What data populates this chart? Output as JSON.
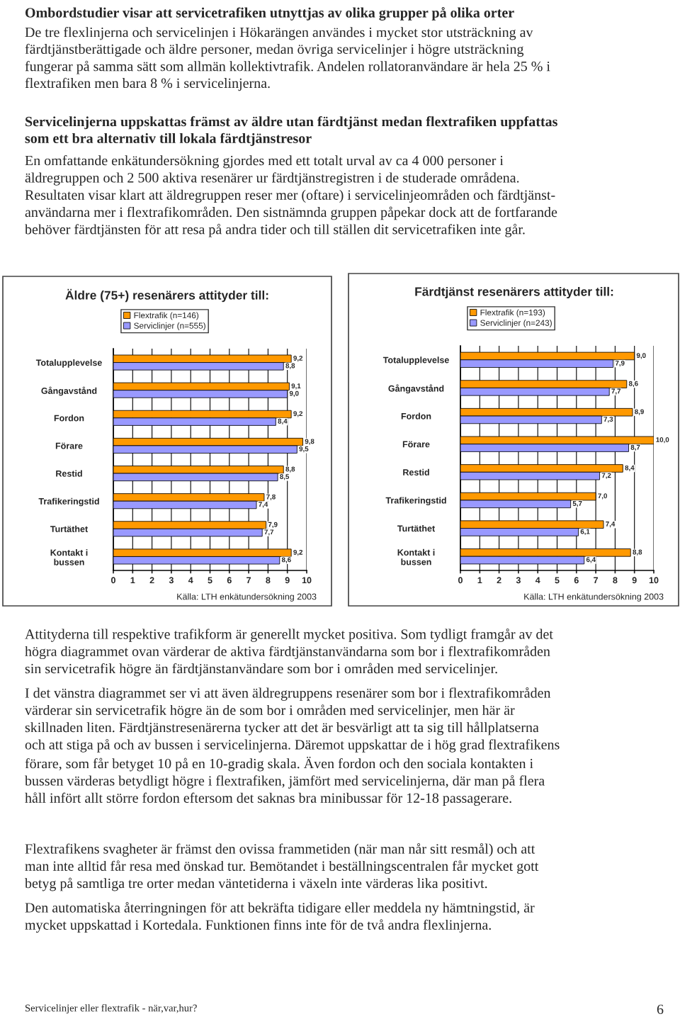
{
  "chart_data": [
    {
      "type": "other",
      "title": "Ombordstudier visar att servicetrafiken utnyttjas av olika grupper på olika orter",
      "annotations": [
        "De tre flexlinjerna och servicelinjen i Hökarängen användes i mycket stor utsträckning av\nfärdtjänstberättigade och äldre personer, medan övriga servicelinjer i högre utsträckning\nfungerar på samma sätt som allmän kollektivtrafik. Andelen rollatoranvändare är hela 25 % i\nflextrafiken men bara 8 % i servicelinjerna."
      ]
    },
    {
      "type": "other",
      "title": "Servicelinjerna uppskattas främst av äldre utan färdtjänst medan flextrafiken uppfattas\nsom ett bra alternativ till lokala färdtjänstresor",
      "annotations": [
        "En omfattande enkätundersökning gjordes med ett totalt urval av ca 4 000 personer i\näldregruppen och 2 500 aktiva resenärer ur färdtjänstregistren i de studerade områdena.\nResultaten visar klart att äldregruppen reser mer (oftare) i servicelinjeområden och färdtjänst-\nanvändarna mer i flextrafikområden. Den sistnämnda gruppen påpekar dock att de fortfarande\nbehöver färdtjänsten för att resa på andra tider och till ställen dit servicetrafiken inte går."
      ]
    },
    {
      "type": "bar",
      "orientation": "horizontal",
      "title": "Äldre (75+) resenärers attityder till:",
      "categories": [
        "Totalupplevelse",
        "Gångavstånd",
        "Fordon",
        "Förare",
        "Restid",
        "Trafikeringstid",
        "Turtäthet",
        "Kontakt i\nbussen"
      ],
      "xlim": [
        0,
        10
      ],
      "xticks": [
        0,
        1,
        2,
        3,
        4,
        5,
        6,
        7,
        8,
        9,
        10
      ],
      "grid": "x",
      "legend": "top",
      "annotations": [
        "Källa: LTH enkätundersökning 2003"
      ],
      "series": [
        {
          "name": "Flextrafik (n=146)",
          "color": "#ff9900",
          "values": [
            9.2,
            9.1,
            9.2,
            9.8,
            8.8,
            7.8,
            7.9,
            9.2
          ],
          "value_labels": [
            "9,2",
            "9,1",
            "9,2",
            "9,8",
            "8,8",
            "7,8",
            "7,9",
            "9,2"
          ]
        },
        {
          "name": "Serviclinjer (n=555)",
          "color": "#9999ff",
          "values": [
            8.8,
            9.0,
            8.4,
            9.5,
            8.5,
            7.4,
            7.7,
            8.6
          ],
          "value_labels": [
            "8,8",
            "9,0",
            "8,4",
            "9,5",
            "8,5",
            "7,4",
            "7,7",
            "8,6"
          ]
        }
      ]
    },
    {
      "type": "bar",
      "orientation": "horizontal",
      "title": "Färdtjänst resenärers attityder till:",
      "categories": [
        "Totalupplevelse",
        "Gångavstånd",
        "Fordon",
        "Förare",
        "Restid",
        "Trafikeringstid",
        "Turtäthet",
        "Kontakt i\nbussen"
      ],
      "xlim": [
        0,
        10
      ],
      "xticks": [
        0,
        1,
        2,
        3,
        4,
        5,
        6,
        7,
        8,
        9,
        10
      ],
      "grid": "x",
      "legend": "top",
      "annotations": [
        "Källa: LTH enkätundersökning 2003"
      ],
      "series": [
        {
          "name": "Flextrafik (n=193)",
          "color": "#ff9900",
          "values": [
            9.0,
            8.6,
            8.9,
            10.0,
            8.4,
            7.0,
            7.4,
            8.8
          ],
          "value_labels": [
            "9,0",
            "8,6",
            "8,9",
            "10,0",
            "8,4",
            "7,0",
            "7,4",
            "8,8"
          ]
        },
        {
          "name": "Serviclinjer (n=243)",
          "color": "#9999ff",
          "values": [
            7.9,
            7.7,
            7.3,
            8.7,
            7.2,
            5.7,
            6.1,
            6.4
          ],
          "value_labels": [
            "7,9",
            "7,7",
            "7,3",
            "8,7",
            "7,2",
            "5,7",
            "6,1",
            "6,4"
          ]
        }
      ]
    },
    {
      "type": "other",
      "annotations": [
        "Attityderna till respektive trafikform är generellt mycket positiva. Som tydligt framgår av det\nhögra diagrammet ovan värderar de aktiva färdtjänstanvändarna som bor i flextrafikområden\nsin servicetrafik högre än färdtjänstanvändare som bor i områden med servicelinjer.",
        "I det vänstra diagrammet ser vi att även äldregruppens resenärer som bor i flextrafikområden\nvärderar sin servicetrafik högre än de som bor i områden med servicelinjer, men här är\nskillnaden liten. Färdtjänstresenärerna tycker att det är besvärligt att ta sig till hållplatserna\noch att stiga på och av bussen i servicelinjerna. Däremot uppskattar de i hög grad flextrafikens\nförare, som får betyget 10 på en 10-gradig skala. Även fordon och den sociala kontakten i\nbussen värderas betydligt högre i flextrafiken, jämfört med servicelinjerna, där man på flera\nhåll infört allt större fordon eftersom det saknas bra minibussar för 12-18 passagerare.",
        "Flextrafikens svagheter är främst den ovissa frammetiden (när man når sitt resmål) och att\nman inte alltid får resa med önskad tur. Bemötandet i beställningscentralen får mycket gott\nbetyg på samtliga tre orter medan väntetiderna i växeln inte värderas lika positivt.",
        "Den automatiska återringningen för att bekräfta tidigare eller meddela ny hämtningstid, är\nmycket uppskattad i Kortedala. Funktionen finns inte för de två andra flexlinjerna."
      ]
    },
    {
      "type": "other",
      "annotations": [
        "Servicelinjer eller flextrafik - när,var,hur?",
        "6"
      ]
    }
  ]
}
